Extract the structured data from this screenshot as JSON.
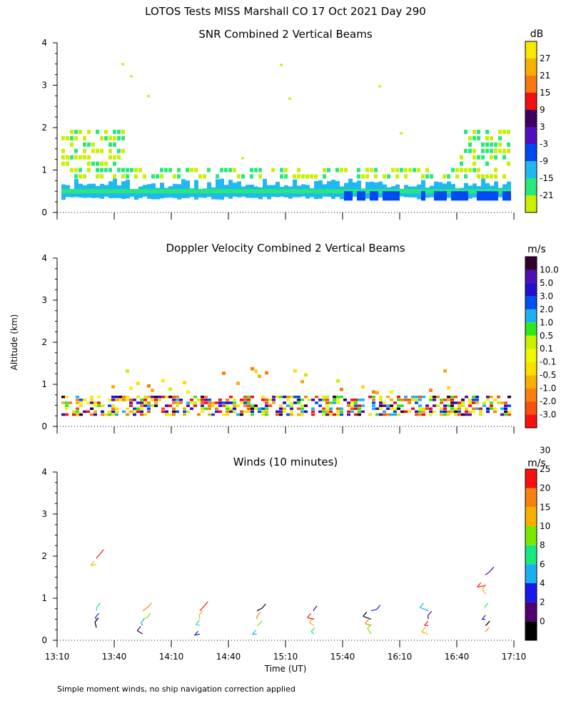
{
  "figure": {
    "title": "LOTOS Tests MISS Marshall CO  17 Oct 2021 Day 290",
    "footnote": "Simple moment winds, no ship navigation correction applied",
    "ylabel": "Altitude (km)",
    "xlabel": "Time (UT)"
  },
  "chart_data": [
    {
      "type": "heatmap",
      "title": "SNR Combined 2 Vertical Beams",
      "units": "dB",
      "xlim": [
        "13:10",
        "17:10"
      ],
      "ylim": [
        0,
        4
      ],
      "yticks": [
        0,
        1,
        2,
        3,
        4
      ],
      "colorbar": {
        "labels": [
          "-21",
          "-15",
          "-9",
          "-3",
          "3",
          "9",
          "15",
          "21",
          "27"
        ],
        "colors": [
          "#c8f000",
          "#28e878",
          "#20b8f0",
          "#0048f0",
          "#5010c0",
          "#400060",
          "#f01010",
          "#f87810",
          "#f8b000",
          "#f8e800"
        ]
      }
    },
    {
      "type": "heatmap",
      "title": "Doppler Velocity Combined 2 Vertical Beams",
      "units": "m/s",
      "xlim": [
        "13:10",
        "17:10"
      ],
      "ylim": [
        0,
        4
      ],
      "yticks": [
        0,
        1,
        2,
        3,
        4
      ],
      "colorbar": {
        "labels": [
          "-3.0",
          "-2.0",
          "-1.0",
          "-0.5",
          "-0.1",
          "0.1",
          "0.5",
          "1.0",
          "2.0",
          "3.0",
          "5.0",
          "10.0"
        ],
        "colors": [
          "#f81010",
          "#f85010",
          "#f88010",
          "#f8b000",
          "#f8e000",
          "#f0f800",
          "#c8f000",
          "#30e818",
          "#20b0f0",
          "#0050f0",
          "#2010d0",
          "#5010b0",
          "#300030"
        ]
      }
    },
    {
      "type": "wind-barbs",
      "title": "Winds (10 minutes)",
      "units": "m/s",
      "xlim": [
        "13:10",
        "17:10"
      ],
      "ylim": [
        0,
        4
      ],
      "yticks": [
        0,
        1,
        2,
        3,
        4
      ],
      "xticks": [
        "13:10",
        "13:40",
        "14:10",
        "14:40",
        "15:10",
        "15:40",
        "16:10",
        "16:40",
        "17:10"
      ],
      "colorbar": {
        "labels": [
          "0",
          "2",
          "4",
          "6",
          "8",
          "10",
          "15",
          "20",
          "25",
          "30"
        ],
        "colors": [
          "#000000",
          "#500070",
          "#1818e8",
          "#18b0f0",
          "#18e880",
          "#78e800",
          "#f8b000",
          "#f88010",
          "#f81010"
        ]
      }
    }
  ]
}
